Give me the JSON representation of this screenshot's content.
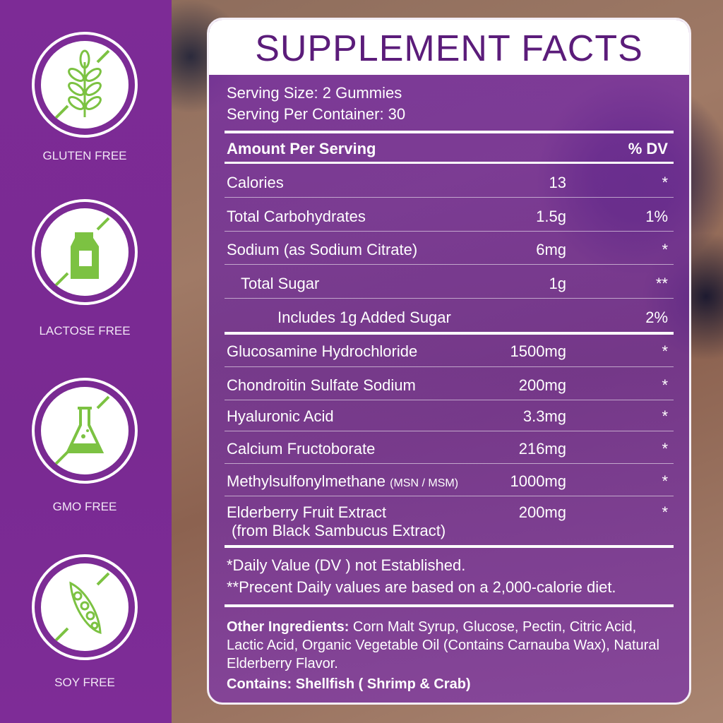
{
  "badges": [
    {
      "label": "GLUTEN FREE",
      "icon": "wheat-icon"
    },
    {
      "label": "LACTOSE FREE",
      "icon": "milk-carton-icon"
    },
    {
      "label": "GMO FREE",
      "icon": "flask-icon"
    },
    {
      "label": "SOY FREE",
      "icon": "soybean-pod-icon"
    }
  ],
  "colors": {
    "purple": "#7b2a93",
    "title": "#5b1c7a",
    "icon_green": "#7cc242"
  },
  "facts": {
    "title": "SUPPLEMENT FACTS",
    "serving_size": "Serving Size: 2 Gummies",
    "servings": "Serving Per Container: 30",
    "header_amount": "Amount Per Serving",
    "header_dv": "% DV",
    "rows": [
      {
        "name": "Calories",
        "amount": "13",
        "dv": "*"
      },
      {
        "name": "Total Carbohydrates",
        "amount": "1.5g",
        "dv": "1%"
      },
      {
        "name": "Sodium (as Sodium Citrate)",
        "amount": "6mg",
        "dv": "*"
      },
      {
        "name": "Total Sugar",
        "amount": "1g",
        "dv": "**"
      },
      {
        "name": "Includes 1g Added Sugar",
        "amount": "",
        "dv": "2%"
      },
      {
        "name": "Glucosamine Hydrochloride",
        "amount": "1500mg",
        "dv": "*"
      },
      {
        "name": "Chondroitin Sulfate Sodium",
        "amount": "200mg",
        "dv": "*"
      },
      {
        "name": "Hyaluronic Acid",
        "amount": "3.3mg",
        "dv": "*"
      },
      {
        "name": "Calcium Fructoborate",
        "amount": "216mg",
        "dv": "*"
      },
      {
        "name": "Methylsulfonylmethane",
        "name_note": "(MSN / MSM)",
        "amount": "1000mg",
        "dv": "*"
      },
      {
        "name": "Elderberry Fruit Extract",
        "name_line2": "(from Black Sambucus Extract)",
        "amount": "200mg",
        "dv": "*"
      }
    ],
    "footnote1": "*Daily Value (DV ) not Established.",
    "footnote2": "**Precent Daily values are based  on a 2,000-calorie diet.",
    "other_label": "Other Ingredients:",
    "other_text": " Corn Malt Syrup, Glucose, Pectin, Citric Acid, Lactic Acid, Organic Vegetable Oil (Contains Carnauba Wax), Natural Elderberry Flavor.",
    "contains": "Contains: Shellfish ( Shrimp & Crab)"
  }
}
